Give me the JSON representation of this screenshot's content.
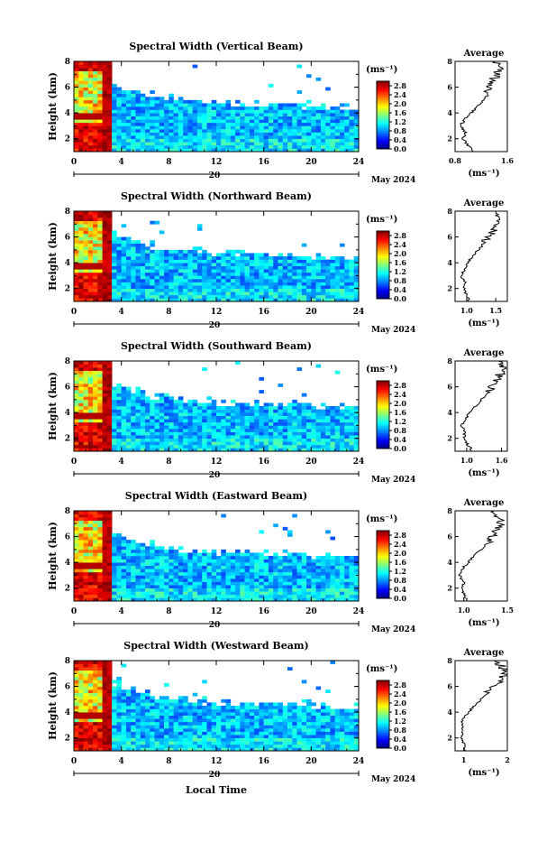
{
  "chart_data": [
    {
      "type": "heatmap",
      "title": "Spectral Width (Vertical Beam)",
      "ylabel": "Height (km)",
      "ylim": [
        1,
        8
      ],
      "yticks": [
        2,
        4,
        6,
        8
      ],
      "xlim": [
        0,
        24
      ],
      "xticks": [
        0,
        4,
        8,
        12,
        16,
        20,
        24
      ],
      "date_day": "20",
      "date_label": "May 2024",
      "colorbar": {
        "unit": "(ms⁻¹)",
        "ticks": [
          "0.0",
          "0.4",
          "0.8",
          "1.2",
          "1.6",
          "2.0",
          "2.4",
          "2.8"
        ],
        "range": [
          0,
          3.0
        ]
      },
      "average": {
        "title": "Average",
        "xlabel": "(ms⁻¹)",
        "xlim": [
          0.8,
          1.6
        ],
        "xticks": [
          "0.8",
          "1.6"
        ],
        "profile": [
          [
            1.0,
            1.1
          ],
          [
            1.5,
            1.0
          ],
          [
            2.0,
            0.92
          ],
          [
            2.5,
            0.96
          ],
          [
            3.0,
            0.88
          ],
          [
            3.5,
            0.95
          ],
          [
            4.0,
            1.05
          ],
          [
            4.5,
            1.15
          ],
          [
            5.0,
            1.25
          ],
          [
            5.5,
            1.3
          ],
          [
            6.0,
            1.35
          ],
          [
            6.5,
            1.38
          ],
          [
            7.0,
            1.45
          ],
          [
            7.5,
            1.5
          ],
          [
            8.0,
            1.42
          ]
        ]
      }
    },
    {
      "type": "heatmap",
      "title": "Spectral Width (Northward Beam)",
      "ylabel": "Height (km)",
      "ylim": [
        1,
        8
      ],
      "yticks": [
        2,
        4,
        6,
        8
      ],
      "xlim": [
        0,
        24
      ],
      "xticks": [
        0,
        4,
        8,
        12,
        16,
        20,
        24
      ],
      "date_day": "20",
      "date_label": "May 2024",
      "colorbar": {
        "unit": "(ms⁻¹)",
        "ticks": [
          "0.0",
          "0.4",
          "0.8",
          "1.2",
          "1.6",
          "2.0",
          "2.4",
          "2.8"
        ],
        "range": [
          0,
          3.0
        ]
      },
      "average": {
        "title": "Average",
        "xlabel": "(ms⁻¹)",
        "xlim": [
          0.8,
          1.7
        ],
        "xticks": [
          "1.0",
          "1.5"
        ],
        "profile": [
          [
            1.0,
            1.05
          ],
          [
            1.5,
            1.0
          ],
          [
            2.0,
            0.95
          ],
          [
            2.5,
            0.98
          ],
          [
            3.0,
            0.9
          ],
          [
            3.5,
            0.96
          ],
          [
            4.0,
            1.02
          ],
          [
            4.5,
            1.1
          ],
          [
            5.0,
            1.2
          ],
          [
            5.5,
            1.3
          ],
          [
            6.0,
            1.38
          ],
          [
            6.5,
            1.45
          ],
          [
            7.0,
            1.55
          ],
          [
            7.5,
            1.6
          ],
          [
            8.0,
            1.5
          ]
        ]
      }
    },
    {
      "type": "heatmap",
      "title": "Spectral Width (Southward Beam)",
      "ylabel": "Height (km)",
      "ylim": [
        1,
        8
      ],
      "yticks": [
        2,
        4,
        6,
        8
      ],
      "xlim": [
        0,
        24
      ],
      "xticks": [
        0,
        4,
        8,
        12,
        16,
        20,
        24
      ],
      "date_day": "20",
      "date_label": "May 2024",
      "colorbar": {
        "unit": "(ms⁻¹)",
        "ticks": [
          "0.0",
          "0.4",
          "0.8",
          "1.2",
          "1.6",
          "2.0",
          "2.4",
          "2.8"
        ],
        "range": [
          0,
          3.0
        ]
      },
      "average": {
        "title": "Average",
        "xlabel": "(ms⁻¹)",
        "xlim": [
          0.8,
          1.7
        ],
        "xticks": [
          "1.0",
          "1.6"
        ],
        "profile": [
          [
            1.0,
            1.1
          ],
          [
            1.5,
            1.02
          ],
          [
            2.0,
            0.95
          ],
          [
            2.5,
            0.97
          ],
          [
            3.0,
            0.92
          ],
          [
            3.5,
            0.98
          ],
          [
            4.0,
            1.05
          ],
          [
            4.5,
            1.15
          ],
          [
            5.0,
            1.25
          ],
          [
            5.5,
            1.35
          ],
          [
            6.0,
            1.42
          ],
          [
            6.5,
            1.5
          ],
          [
            7.0,
            1.58
          ],
          [
            7.5,
            1.62
          ],
          [
            8.0,
            1.55
          ]
        ]
      }
    },
    {
      "type": "heatmap",
      "title": "Spectral Width (Eastward Beam)",
      "ylabel": "Height (km)",
      "ylim": [
        1,
        8
      ],
      "yticks": [
        2,
        4,
        6,
        8
      ],
      "xlim": [
        0,
        24
      ],
      "xticks": [
        0,
        4,
        8,
        12,
        16,
        20,
        24
      ],
      "date_day": "20",
      "date_label": "May 2024",
      "colorbar": {
        "unit": "(ms⁻¹)",
        "ticks": [
          "0.0",
          "0.4",
          "0.8",
          "1.2",
          "1.6",
          "2.0",
          "2.4",
          "2.8"
        ],
        "range": [
          0,
          3.0
        ]
      },
      "average": {
        "title": "Average",
        "xlabel": "(ms⁻¹)",
        "xlim": [
          0.9,
          1.5
        ],
        "xticks": [
          "1.0",
          "1.5"
        ],
        "profile": [
          [
            1.0,
            1.05
          ],
          [
            1.5,
            1.0
          ],
          [
            2.0,
            0.98
          ],
          [
            2.5,
            1.0
          ],
          [
            3.0,
            0.95
          ],
          [
            3.5,
            0.98
          ],
          [
            4.0,
            1.05
          ],
          [
            4.5,
            1.12
          ],
          [
            5.0,
            1.2
          ],
          [
            5.5,
            1.28
          ],
          [
            6.0,
            1.32
          ],
          [
            6.5,
            1.38
          ],
          [
            7.0,
            1.42
          ],
          [
            7.5,
            1.4
          ],
          [
            8.0,
            1.35
          ]
        ]
      }
    },
    {
      "type": "heatmap",
      "title": "Spectral Width (Westward Beam)",
      "ylabel": "Height (km)",
      "ylim": [
        1,
        8
      ],
      "yticks": [
        2,
        4,
        6,
        8
      ],
      "xlim": [
        0,
        24
      ],
      "xticks": [
        0,
        4,
        8,
        12,
        16,
        20,
        24
      ],
      "date_day": "20",
      "date_label": "May 2024",
      "colorbar": {
        "unit": "(ms⁻¹)",
        "ticks": [
          "0.0",
          "0.4",
          "0.8",
          "1.2",
          "1.6",
          "2.0",
          "2.4",
          "2.8"
        ],
        "range": [
          0,
          3.0
        ]
      },
      "average": {
        "title": "Average",
        "xlabel": "(ms⁻¹)",
        "xlim": [
          0.8,
          2.0
        ],
        "xticks": [
          "1",
          "2"
        ],
        "profile": [
          [
            1.0,
            1.05
          ],
          [
            1.5,
            1.0
          ],
          [
            2.0,
            0.95
          ],
          [
            2.5,
            0.98
          ],
          [
            3.0,
            0.95
          ],
          [
            3.5,
            1.0
          ],
          [
            4.0,
            1.1
          ],
          [
            4.5,
            1.25
          ],
          [
            5.0,
            1.4
          ],
          [
            5.5,
            1.55
          ],
          [
            6.0,
            1.7
          ],
          [
            6.5,
            1.85
          ],
          [
            7.0,
            1.95
          ],
          [
            7.5,
            1.9
          ],
          [
            8.0,
            1.7
          ]
        ]
      }
    }
  ],
  "footer": {
    "xlabel": "Local Time"
  }
}
